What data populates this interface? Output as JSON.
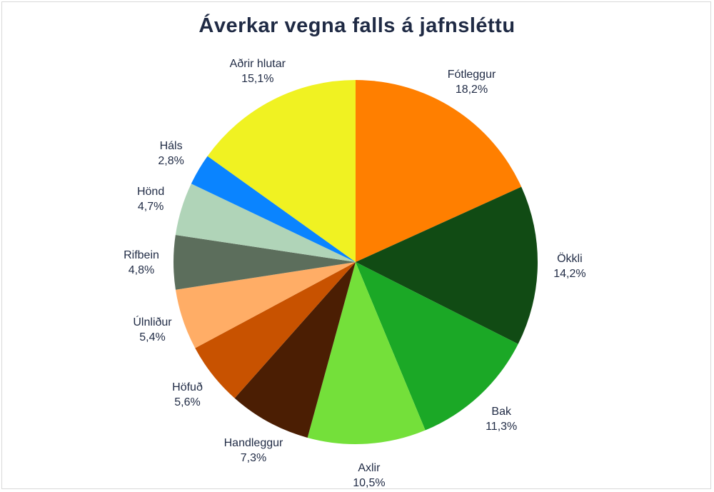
{
  "chart_data": {
    "type": "pie",
    "title": "Áverkar vegna falls á jafnsléttu",
    "slices": [
      {
        "label": "Fótleggur",
        "value": 18.2,
        "pct": "18,2%",
        "color": "#ff7f00"
      },
      {
        "label": "Ökkli",
        "value": 14.2,
        "pct": "14,2%",
        "color": "#114b14"
      },
      {
        "label": "Bak",
        "value": 11.3,
        "pct": "11,3%",
        "color": "#1ba826"
      },
      {
        "label": "Axlir",
        "value": 10.5,
        "pct": "10,5%",
        "color": "#74e03a"
      },
      {
        "label": "Handleggur",
        "value": 7.3,
        "pct": "7,3%",
        "color": "#4b1e03"
      },
      {
        "label": "Höfuð",
        "value": 5.6,
        "pct": "5,6%",
        "color": "#c85200"
      },
      {
        "label": "Úlnliður",
        "value": 5.4,
        "pct": "5,4%",
        "color": "#ffad66"
      },
      {
        "label": "Rifbein",
        "value": 4.8,
        "pct": "4,8%",
        "color": "#5c6e5c"
      },
      {
        "label": "Hönd",
        "value": 4.7,
        "pct": "4,7%",
        "color": "#b0d4b8"
      },
      {
        "label": "Háls",
        "value": 2.8,
        "pct": "2,8%",
        "color": "#0a84ff"
      },
      {
        "label": "Aðrir hlutar",
        "value": 15.1,
        "pct": "15,1%",
        "color": "#f0f222"
      }
    ]
  }
}
